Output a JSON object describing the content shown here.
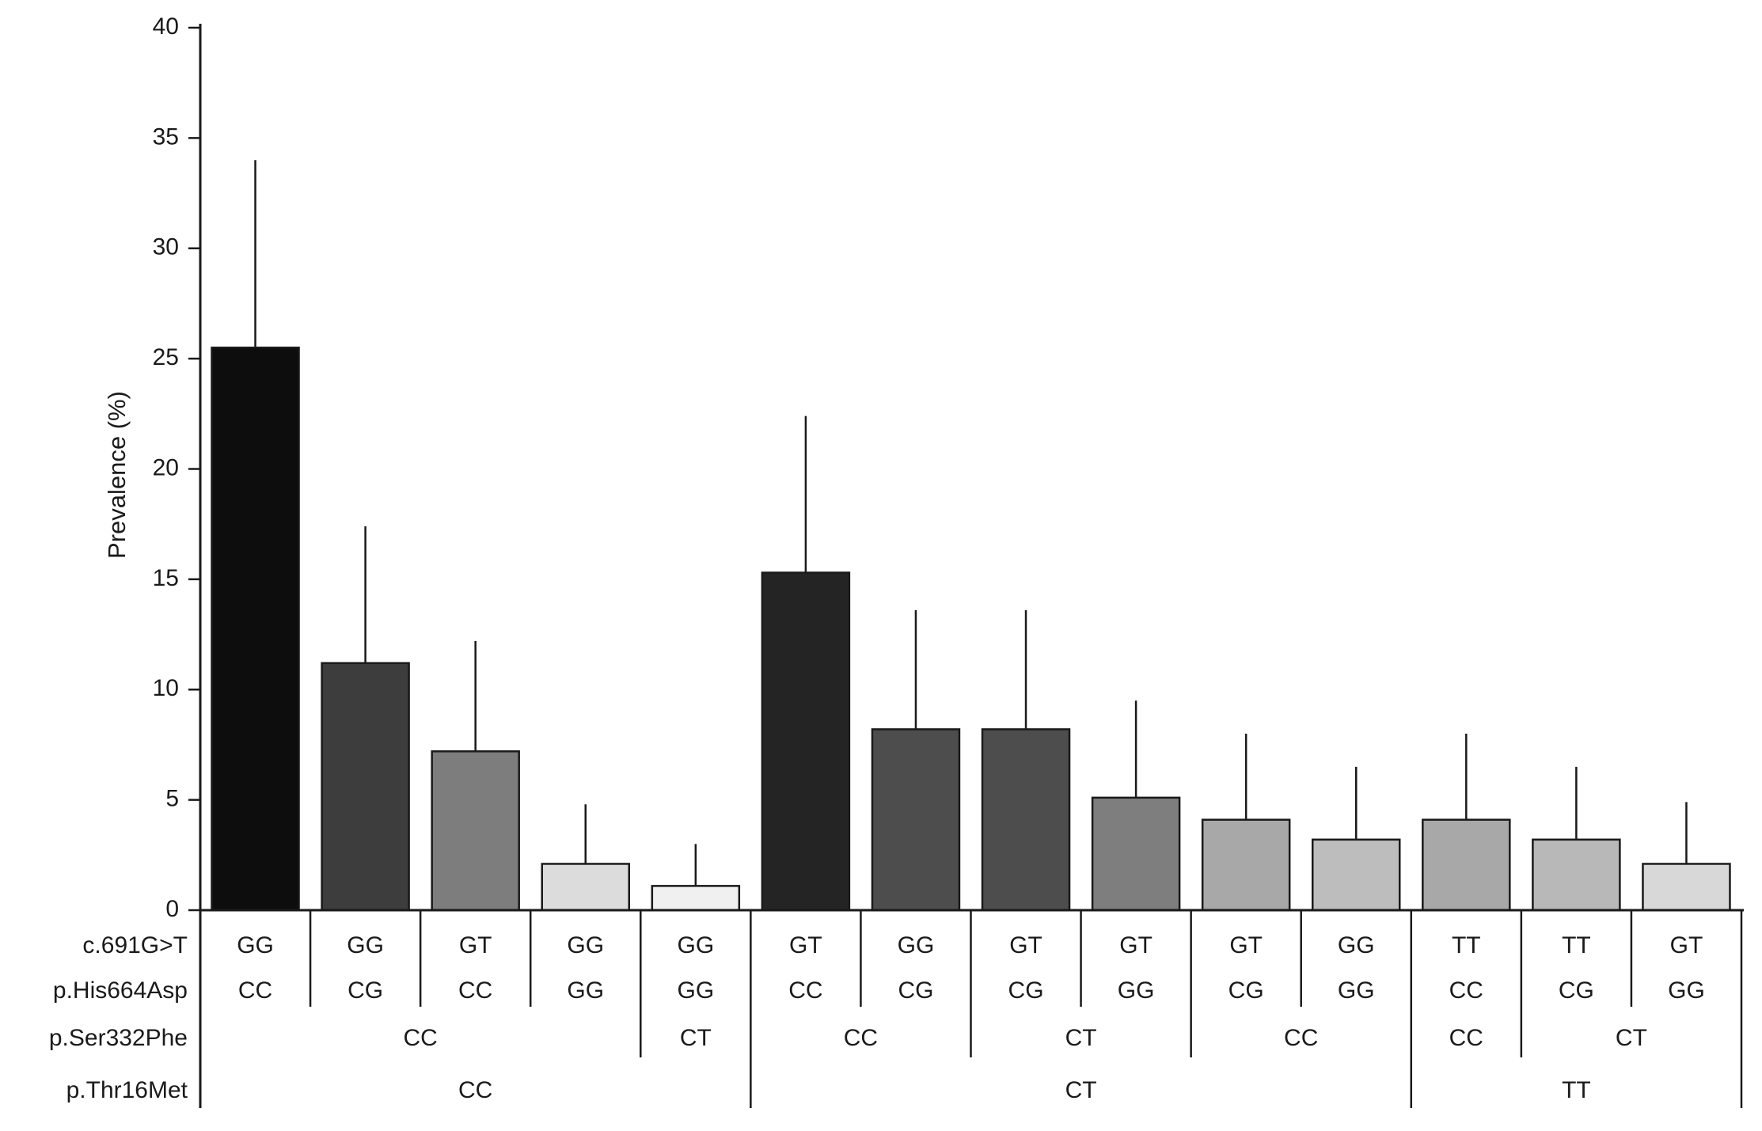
{
  "chart_data": {
    "type": "bar",
    "title": "",
    "ylabel": "Prevalence (%)",
    "xlabel": "",
    "ylim": [
      0,
      40
    ],
    "yticks": [
      0,
      5,
      10,
      15,
      20,
      25,
      30,
      35,
      40
    ],
    "grid": "off",
    "legend": "none",
    "error_bars": "upper only, no caps",
    "row_labels": [
      "c.691G>T",
      "p.His664Asp",
      "p.Ser332Phe",
      "p.Thr16Met"
    ],
    "bars": [
      {
        "c691": "GG",
        "his664": "CC",
        "value": 25.5,
        "err_top": 34.0,
        "color": "#0d0d0d"
      },
      {
        "c691": "GG",
        "his664": "CG",
        "value": 11.2,
        "err_top": 17.4,
        "color": "#3d3d3d"
      },
      {
        "c691": "GT",
        "his664": "CC",
        "value": 7.2,
        "err_top": 12.2,
        "color": "#7d7d7d"
      },
      {
        "c691": "GG",
        "his664": "GG",
        "value": 2.1,
        "err_top": 4.8,
        "color": "#dcdcdc"
      },
      {
        "c691": "GG",
        "his664": "GG",
        "value": 1.1,
        "err_top": 3.0,
        "color": "#f0f0f0"
      },
      {
        "c691": "GT",
        "his664": "CC",
        "value": 15.3,
        "err_top": 22.4,
        "color": "#242424"
      },
      {
        "c691": "GG",
        "his664": "CG",
        "value": 8.2,
        "err_top": 13.6,
        "color": "#4d4d4d"
      },
      {
        "c691": "GT",
        "his664": "CG",
        "value": 8.2,
        "err_top": 13.6,
        "color": "#4d4d4d"
      },
      {
        "c691": "GT",
        "his664": "GG",
        "value": 5.1,
        "err_top": 9.5,
        "color": "#7e7e7e"
      },
      {
        "c691": "GT",
        "his664": "CG",
        "value": 4.1,
        "err_top": 8.0,
        "color": "#a8a8a8"
      },
      {
        "c691": "GG",
        "his664": "GG",
        "value": 3.2,
        "err_top": 6.5,
        "color": "#bdbdbd"
      },
      {
        "c691": "TT",
        "his664": "CC",
        "value": 4.1,
        "err_top": 8.0,
        "color": "#a8a8a8"
      },
      {
        "c691": "TT",
        "his664": "CG",
        "value": 3.2,
        "err_top": 6.5,
        "color": "#b8b8b8"
      },
      {
        "c691": "GT",
        "his664": "GG",
        "value": 2.1,
        "err_top": 4.9,
        "color": "#d8d8d8"
      }
    ],
    "ser332_groups": [
      {
        "label": "CC",
        "start": 0,
        "span": 4
      },
      {
        "label": "CT",
        "start": 4,
        "span": 1
      },
      {
        "label": "CC",
        "start": 5,
        "span": 2
      },
      {
        "label": "CT",
        "start": 7,
        "span": 2
      },
      {
        "label": "CC",
        "start": 9,
        "span": 2
      },
      {
        "label": "CC",
        "start": 11,
        "span": 1
      },
      {
        "label": "CT",
        "start": 12,
        "span": 2
      }
    ],
    "thr16_groups": [
      {
        "label": "CC",
        "start": 0,
        "span": 5
      },
      {
        "label": "CT",
        "start": 5,
        "span": 6
      },
      {
        "label": "TT",
        "start": 11,
        "span": 3
      }
    ],
    "colors": {
      "axis": "#1a1a1a",
      "bar_outline": "#1a1a1a",
      "background": "#ffffff"
    }
  }
}
